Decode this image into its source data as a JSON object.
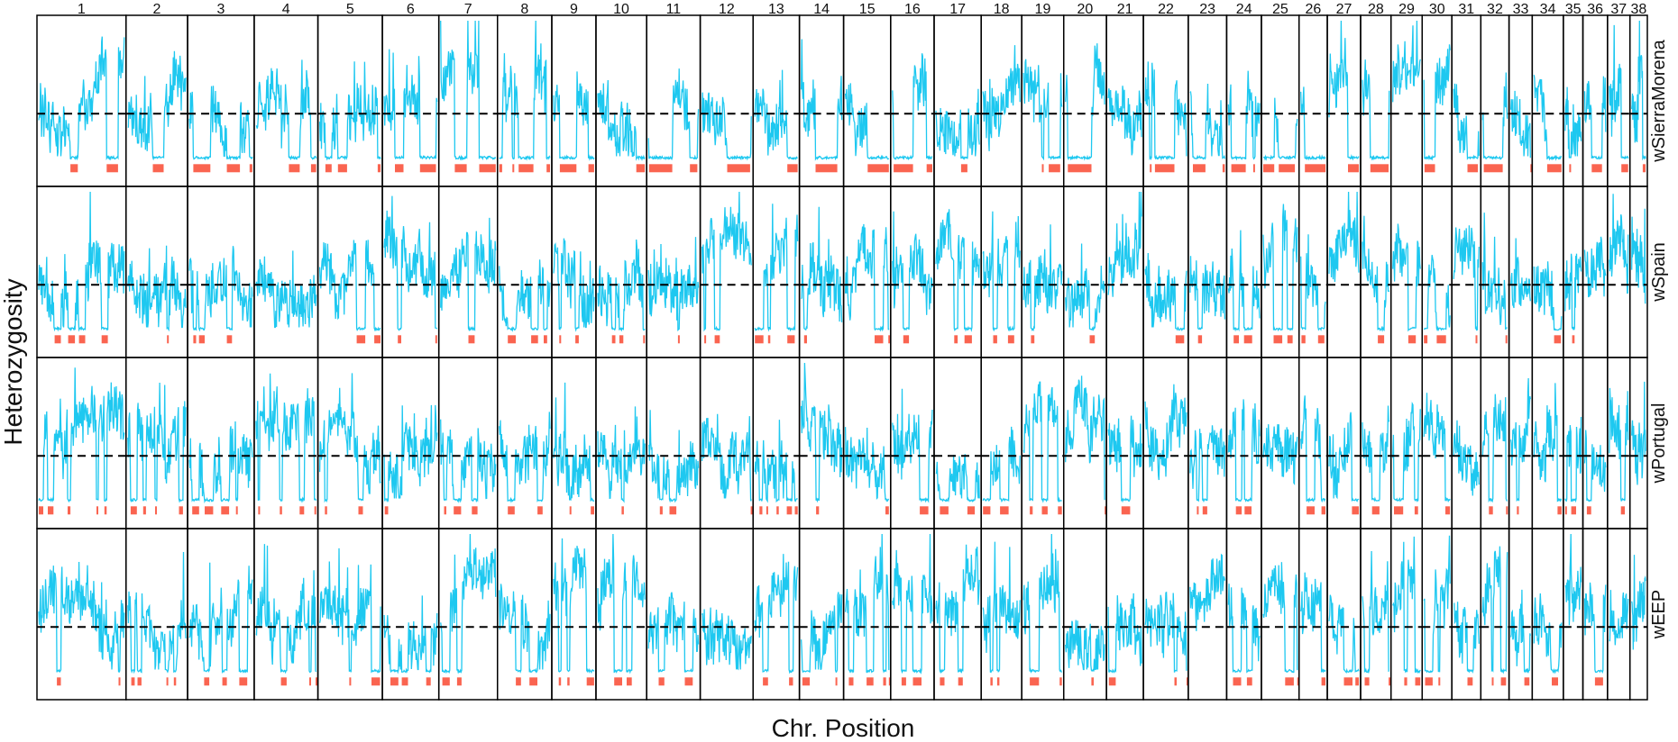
{
  "chart_data": {
    "type": "line",
    "xlabel": "Chr. Position",
    "ylabel": "Heterozygosity",
    "chromosomes": [
      "1",
      "2",
      "3",
      "4",
      "5",
      "6",
      "7",
      "8",
      "9",
      "10",
      "11",
      "12",
      "13",
      "14",
      "15",
      "16",
      "17",
      "18",
      "19",
      "20",
      "21",
      "22",
      "23",
      "24",
      "25",
      "26",
      "27",
      "28",
      "29",
      "30",
      "31",
      "32",
      "33",
      "34",
      "35",
      "36",
      "37",
      "38"
    ],
    "chromosome_rel_lengths": [
      123,
      85,
      92,
      88,
      89,
      78,
      81,
      75,
      61,
      70,
      74,
      73,
      64,
      61,
      65,
      60,
      65,
      56,
      58,
      59,
      51,
      62,
      53,
      48,
      52,
      39,
      46,
      42,
      43,
      41,
      40,
      39,
      32,
      43,
      27,
      34,
      31,
      24
    ],
    "populations": [
      "wSierraMorena",
      "wSpain",
      "wPortugal",
      "wEEP"
    ],
    "reference_line": "dashed black horizontal line at the mean heterozygosity in every panel",
    "series_colors": {
      "heterozygosity": "#1EC8F0",
      "roh_segments": "#FA6450",
      "reference": "#000000"
    },
    "grid": false,
    "legend": "none"
  }
}
